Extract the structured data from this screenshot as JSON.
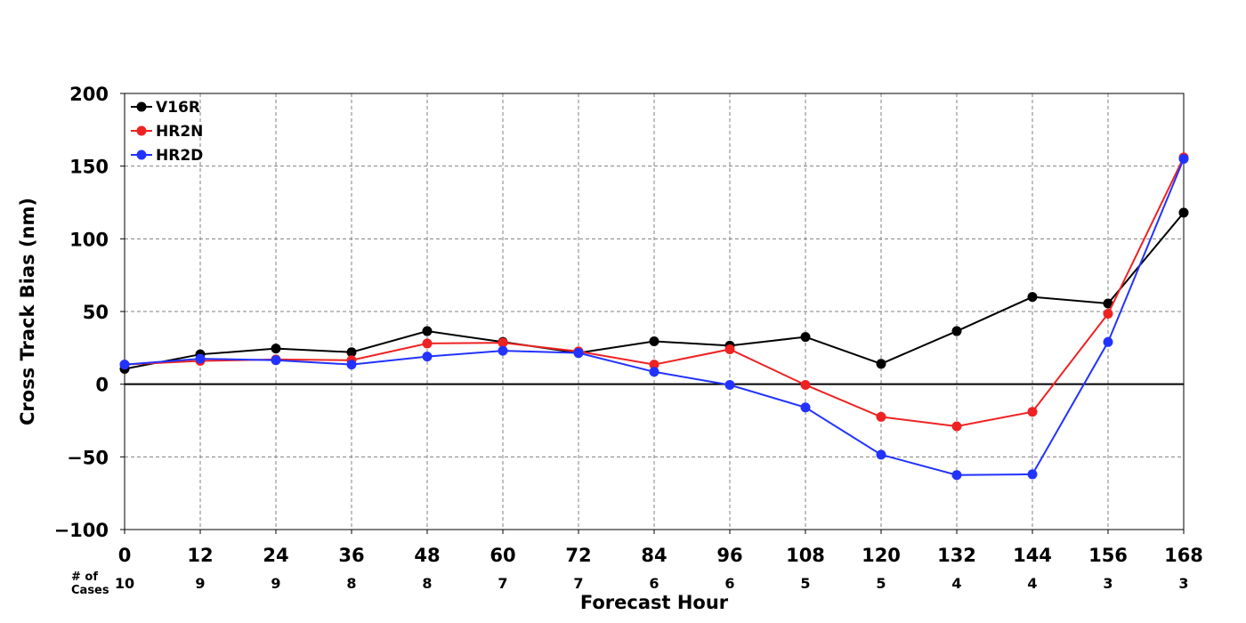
{
  "chart_data": {
    "type": "line",
    "title": "",
    "xlabel": "Forecast Hour",
    "ylabel": "Cross Track Bias (nm)",
    "x": [
      0,
      12,
      24,
      36,
      48,
      60,
      72,
      84,
      96,
      108,
      120,
      132,
      144,
      156,
      168
    ],
    "xlim": [
      0,
      168
    ],
    "ylim": [
      -100,
      200
    ],
    "yticks": [
      -100,
      -50,
      0,
      50,
      100,
      150,
      200
    ],
    "grid": true,
    "legend_position": "top-left",
    "zero_line": true,
    "series": [
      {
        "name": "V16R",
        "color": "#000000",
        "values": [
          10.5,
          20.5,
          24.5,
          22,
          36.5,
          29,
          21.5,
          29.5,
          26.5,
          32.5,
          14,
          36.5,
          60,
          55.5,
          118
        ]
      },
      {
        "name": "HR2N",
        "color": "#ee2222",
        "values": [
          13.5,
          16,
          17,
          16.5,
          28,
          28.5,
          22.5,
          13.5,
          24,
          -0.5,
          -22.5,
          -29,
          -19,
          48.5,
          156
        ]
      },
      {
        "name": "HR2D",
        "color": "#2233ff",
        "values": [
          13.5,
          17.5,
          16.5,
          13.5,
          19,
          23,
          21.5,
          8.5,
          -0.5,
          -16,
          -48.5,
          -62.5,
          -62,
          29,
          155
        ]
      }
    ],
    "cases_label": "# of\nCases",
    "cases": [
      10,
      9,
      9,
      8,
      8,
      7,
      7,
      6,
      6,
      5,
      5,
      4,
      4,
      3,
      3
    ]
  }
}
